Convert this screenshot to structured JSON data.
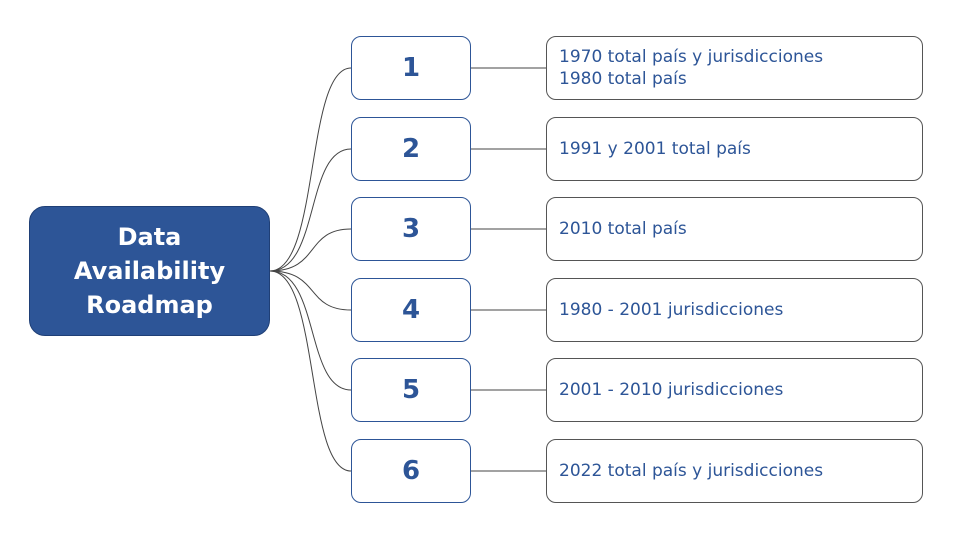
{
  "root": {
    "title": "Data Availability Roadmap"
  },
  "colors": {
    "primary": "#2d5597",
    "connector": "#444444",
    "desc_border": "#555555"
  },
  "items": [
    {
      "number": "1",
      "lines": [
        "1970 total país y jurisdicciones",
        "1980 total país"
      ]
    },
    {
      "number": "2",
      "lines": [
        "1991 y 2001 total país"
      ]
    },
    {
      "number": "3",
      "lines": [
        "2010 total país"
      ]
    },
    {
      "number": "4",
      "lines": [
        "1980 - 2001 jurisdicciones"
      ]
    },
    {
      "number": "5",
      "lines": [
        "2001 - 2010 jurisdicciones"
      ]
    },
    {
      "number": "6",
      "lines": [
        "2022 total país y jurisdicciones"
      ]
    }
  ]
}
